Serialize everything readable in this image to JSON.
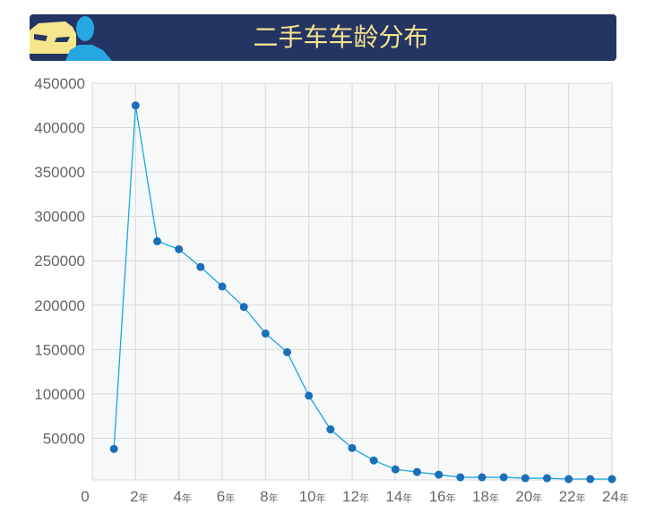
{
  "header": {
    "title": "二手车车龄分布"
  },
  "colors": {
    "banner": "#243463",
    "title": "#f3e38e",
    "line": "#1aa6e6",
    "marker": "#1b6fb8",
    "plot_bg": "#f7f8f8",
    "grid": "#d8d8d8"
  },
  "chart_data": {
    "type": "line",
    "title": "二手车车龄分布",
    "xlabel": "",
    "ylabel": "",
    "x": [
      1,
      2,
      3,
      4,
      5,
      6,
      7,
      8,
      9,
      10,
      11,
      12,
      13,
      14,
      15,
      16,
      17,
      18,
      19,
      20,
      21,
      22,
      23,
      24
    ],
    "values": [
      38000,
      425000,
      272000,
      263000,
      243000,
      221000,
      198000,
      168000,
      147000,
      98000,
      60000,
      39000,
      25000,
      15000,
      12000,
      9000,
      6000,
      6000,
      6000,
      5000,
      5000,
      4000,
      4000,
      4000
    ],
    "xlim": [
      0,
      24
    ],
    "ylim": [
      0,
      450000
    ],
    "y_ticks": [
      "50000",
      "100000",
      "150000",
      "200000",
      "250000",
      "300000",
      "350000",
      "400000",
      "450000"
    ],
    "x_ticks": [
      {
        "num": "0",
        "unit": ""
      },
      {
        "num": "2",
        "unit": "年"
      },
      {
        "num": "4",
        "unit": "年"
      },
      {
        "num": "6",
        "unit": "年"
      },
      {
        "num": "8",
        "unit": "年"
      },
      {
        "num": "10",
        "unit": "年"
      },
      {
        "num": "12",
        "unit": "年"
      },
      {
        "num": "14",
        "unit": "年"
      },
      {
        "num": "16",
        "unit": "年"
      },
      {
        "num": "18",
        "unit": "年"
      },
      {
        "num": "20",
        "unit": "年"
      },
      {
        "num": "22",
        "unit": "年"
      },
      {
        "num": "24",
        "unit": "年"
      }
    ],
    "grid": true,
    "legend": "none"
  }
}
